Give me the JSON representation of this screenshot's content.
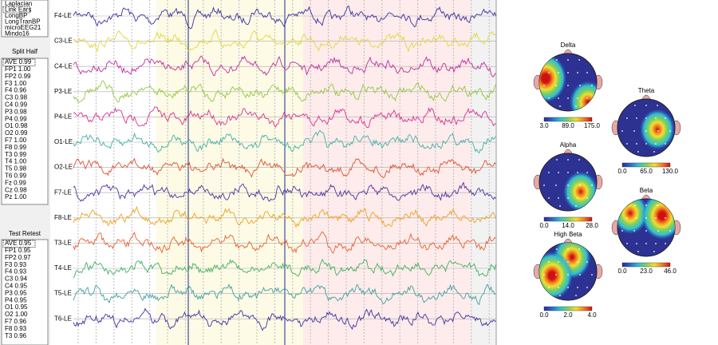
{
  "montages": [
    "Laplacian",
    "Link Ears",
    "LongBP",
    "LongTranBP",
    "microEEG21",
    "Mindo16"
  ],
  "split_half": {
    "title": "Split Half",
    "rows": [
      "AVE  0.99",
      "FP1  1.00",
      "FP2  0.99",
      "F3  1.00",
      "F4  0.96",
      "C3  0.98",
      "C4  0.99",
      "P3  0.98",
      "P4  0.99",
      "O1  0.98",
      "O2  0.99",
      "F7  1.00",
      "F8  0.99",
      "T3  0.99",
      "T4  1.00",
      "T5  0.98",
      "T6  0.99",
      "Fz  0.99",
      "Cz  0.98",
      "Pz  1.00"
    ]
  },
  "test_retest": {
    "title": "Test Retest",
    "rows": [
      "AVE  0.95",
      "FP1  0.95",
      "FP2  0.97",
      "F3  0.93",
      "F4  0.93",
      "C3  0.94",
      "C4  0.95",
      "P3  0.95",
      "P4  0.95",
      "O1  0.95",
      "O2  1.00",
      "F7  0.96",
      "F8  0.93",
      "T3  0.96"
    ]
  },
  "channels": [
    "F4-LE",
    "C3-LE",
    "C4-LE",
    "P3-LE",
    "P4-LE",
    "O1-LE",
    "O2-LE",
    "F7-LE",
    "F8-LE",
    "T3-LE",
    "T4-LE",
    "T5-LE",
    "T6-LE"
  ],
  "topomaps": [
    {
      "title": "Delta",
      "scale": [
        "3.0",
        "89.0",
        "175.0"
      ]
    },
    {
      "title": "Theta",
      "scale": [
        "0.0",
        "65.0",
        "130.0"
      ]
    },
    {
      "title": "Alpha",
      "scale": [
        "0.0",
        "14.0",
        "28.0"
      ]
    },
    {
      "title": "Beta",
      "scale": [
        "0.0",
        "23.0",
        "46.0"
      ]
    },
    {
      "title": "High Beta",
      "scale": [
        "0.0",
        "2.0",
        "4.0"
      ]
    }
  ]
}
